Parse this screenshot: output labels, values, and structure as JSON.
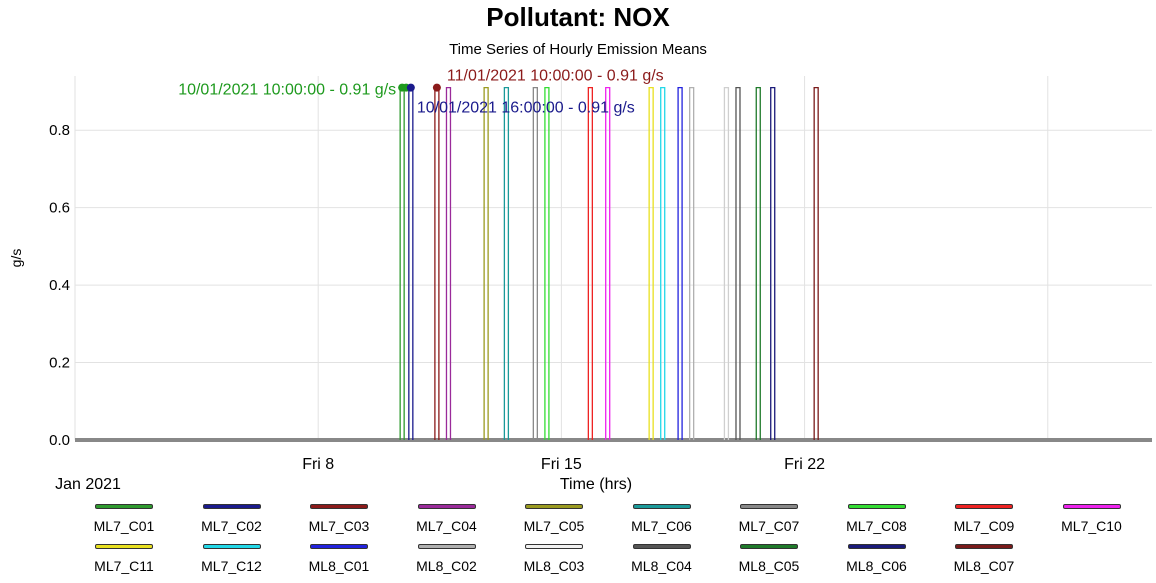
{
  "chart_data": {
    "type": "line",
    "title": "Pollutant: NOX",
    "subtitle": "Time Series of Hourly Emission Means",
    "xlabel": "Time (hrs)",
    "ylabel": "g/s",
    "x_origin_label": "Jan 2021",
    "x_range": [
      "2021-01-01 00:00",
      "2021-02-01 00:00"
    ],
    "x_ticks": [
      {
        "date": "2021-01-08",
        "label": "Fri 8"
      },
      {
        "date": "2021-01-15",
        "label": "Fri 15"
      },
      {
        "date": "2021-01-22",
        "label": "Fri 22"
      }
    ],
    "ylim": [
      0,
      0.94
    ],
    "y_ticks": [
      {
        "value": 0.0,
        "label": "0.0"
      },
      {
        "value": 0.2,
        "label": "0.2"
      },
      {
        "value": 0.4,
        "label": "0.4"
      },
      {
        "value": 0.6,
        "label": "0.6"
      },
      {
        "value": 0.8,
        "label": "0.8"
      }
    ],
    "grid": true,
    "legend_position": "bottom",
    "baseline_value": 0.0,
    "spike_value": 0.91,
    "series": [
      {
        "name": "ML7_C01",
        "color": "#2e9a2e",
        "spikes": [
          "2021-01-10 10:00"
        ]
      },
      {
        "name": "ML7_C02",
        "color": "#1a1a8c",
        "spikes": [
          "2021-01-10 16:00"
        ]
      },
      {
        "name": "ML7_C03",
        "color": "#8b1a1a",
        "spikes": [
          "2021-01-11 10:00"
        ]
      },
      {
        "name": "ML7_C04",
        "color": "#9a2a9a",
        "spikes": [
          "2021-01-11 18:00"
        ]
      },
      {
        "name": "ML7_C05",
        "color": "#9a9a20",
        "spikes": [
          "2021-01-12 20:00"
        ]
      },
      {
        "name": "ML7_C06",
        "color": "#1a9a9a",
        "spikes": [
          "2021-01-13 10:00"
        ]
      },
      {
        "name": "ML7_C07",
        "color": "#888888",
        "spikes": [
          "2021-01-14 06:00"
        ]
      },
      {
        "name": "ML7_C08",
        "color": "#33dd33",
        "spikes": [
          "2021-01-14 14:00"
        ]
      },
      {
        "name": "ML7_C09",
        "color": "#ee2222",
        "spikes": [
          "2021-01-15 20:00"
        ]
      },
      {
        "name": "ML7_C10",
        "color": "#ee22ee",
        "spikes": [
          "2021-01-16 08:00"
        ]
      },
      {
        "name": "ML7_C11",
        "color": "#e8e020",
        "spikes": [
          "2021-01-17 14:00"
        ]
      },
      {
        "name": "ML7_C12",
        "color": "#22d8e8",
        "spikes": [
          "2021-01-17 22:00"
        ]
      },
      {
        "name": "ML8_C01",
        "color": "#2222dd",
        "spikes": [
          "2021-01-18 10:00"
        ]
      },
      {
        "name": "ML8_C02",
        "color": "#b0b0b0",
        "spikes": [
          "2021-01-18 18:00"
        ]
      },
      {
        "name": "ML8_C03",
        "color": "#f2f2f2",
        "spikes": [
          "2021-01-19 18:00"
        ]
      },
      {
        "name": "ML8_C04",
        "color": "#555555",
        "spikes": [
          "2021-01-20 02:00"
        ]
      },
      {
        "name": "ML8_C05",
        "color": "#1f7a2a",
        "spikes": [
          "2021-01-20 16:00"
        ]
      },
      {
        "name": "ML8_C06",
        "color": "#1a1a7a",
        "spikes": [
          "2021-01-21 02:00"
        ]
      },
      {
        "name": "ML8_C07",
        "color": "#7a1a1a",
        "spikes": [
          "2021-01-22 08:00"
        ]
      }
    ],
    "annotations": [
      {
        "text": "10/01/2021 10:00:00 - 0.91 g/s",
        "series": "ML7_C01",
        "x": "2021-01-10 10:00",
        "y": 0.91,
        "color": "#1e9a1e"
      },
      {
        "text": "11/01/2021 10:00:00 - 0.91 g/s",
        "series": "ML7_C03",
        "x": "2021-01-11 10:00",
        "y": 0.91,
        "color": "#8b1a1a"
      },
      {
        "text": "10/01/2021 16:00:00 - 0.91 g/s",
        "series": "ML7_C02",
        "x": "2021-01-10 16:00",
        "y": 0.91,
        "color": "#1a1a8c"
      }
    ]
  }
}
